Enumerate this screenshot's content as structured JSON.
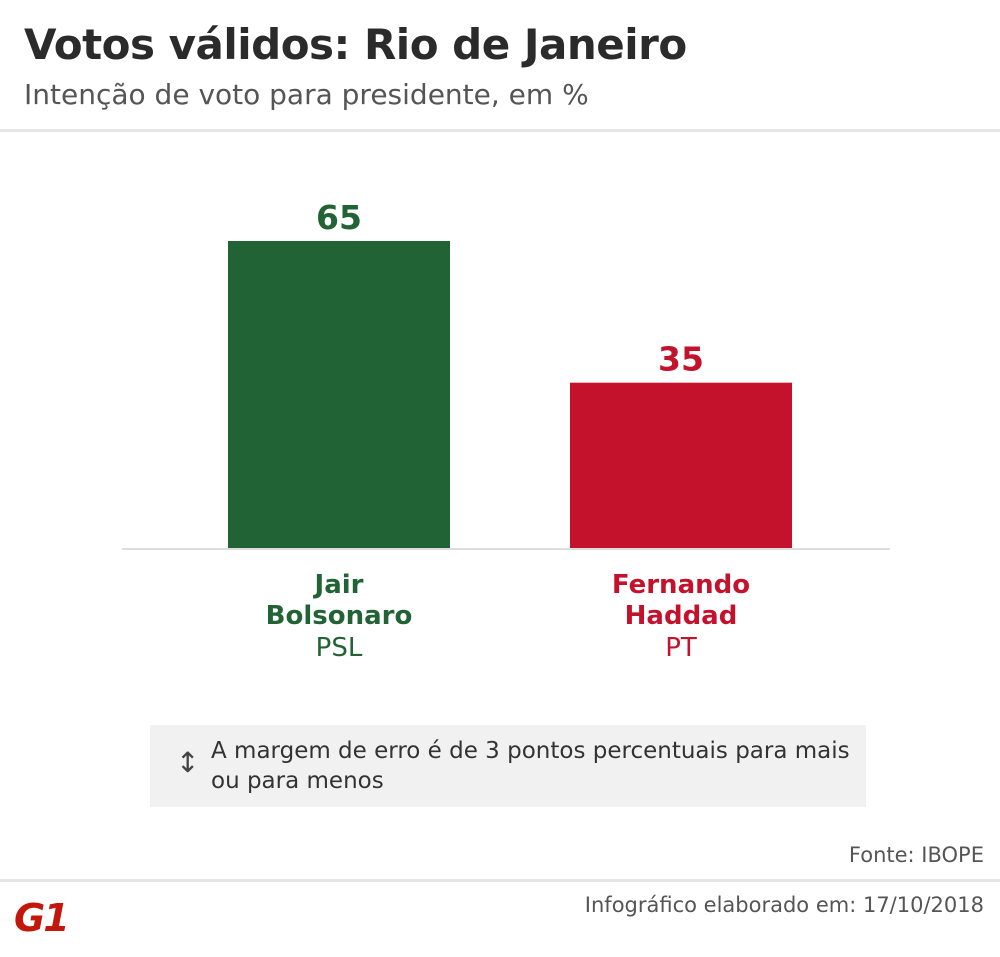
{
  "header": {
    "title": "Votos válidos: Rio de Janeiro",
    "subtitle": "Intenção de voto para presidente, em %"
  },
  "chart_data": {
    "type": "bar",
    "title": "Votos válidos: Rio de Janeiro",
    "subtitle": "Intenção de voto para presidente, em %",
    "categories": [
      "Jair Bolsonaro",
      "Fernando Haddad"
    ],
    "category_lines": [
      [
        "Jair",
        "Bolsonaro"
      ],
      [
        "Fernando",
        "Haddad"
      ]
    ],
    "parties": [
      "PSL",
      "PT"
    ],
    "values": [
      65,
      35
    ],
    "value_labels": [
      "65",
      "35"
    ],
    "colors": [
      "#216334",
      "#c4122d"
    ],
    "ylim": [
      0,
      65
    ],
    "grid": false,
    "legend": "none"
  },
  "note": {
    "icon": "vertical-double-arrow-icon",
    "text": "A margem de erro é de 3 pontos percentuais para mais ou para menos"
  },
  "footer": {
    "source": "Fonte: IBOPE",
    "credit": "Infográfico elaborado em: 17/10/2018",
    "logo_text": "G1",
    "logo_color": "#c4170c"
  }
}
